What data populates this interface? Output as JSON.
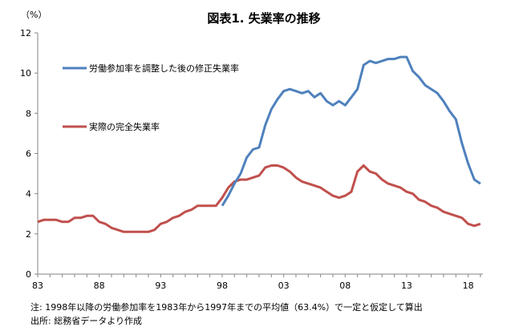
{
  "chart_data": {
    "type": "line",
    "title": "図表1. 失業率の推移",
    "unit_label": "（%）",
    "ylim": [
      0,
      12
    ],
    "y_ticks": [
      0,
      2,
      4,
      6,
      8,
      10,
      12
    ],
    "x_tick_labels": [
      "83",
      "88",
      "93",
      "98",
      "03",
      "08",
      "13",
      "18"
    ],
    "x_tick_years": [
      1983,
      1988,
      1993,
      1998,
      2003,
      2008,
      2013,
      2018
    ],
    "xlim": [
      1983,
      2019.2
    ],
    "legend_placement": "top-left (inside plot)",
    "grid": false,
    "series": [
      {
        "name": "労働参加率を調整した後の修正失業率",
        "color": "#4F81BD",
        "x": [
          1998.0,
          1998.5,
          1999.0,
          1999.5,
          2000.0,
          2000.5,
          2001.0,
          2001.5,
          2002.0,
          2002.5,
          2003.0,
          2003.5,
          2004.0,
          2004.5,
          2005.0,
          2005.5,
          2006.0,
          2006.5,
          2007.0,
          2007.5,
          2008.0,
          2008.5,
          2009.0,
          2009.5,
          2010.0,
          2010.5,
          2011.0,
          2011.5,
          2012.0,
          2012.5,
          2013.0,
          2013.5,
          2014.0,
          2014.5,
          2015.0,
          2015.5,
          2016.0,
          2016.5,
          2017.0,
          2017.5,
          2018.0,
          2018.5,
          2019.0
        ],
        "values": [
          3.4,
          3.9,
          4.5,
          5.0,
          5.8,
          6.2,
          6.3,
          7.4,
          8.2,
          8.7,
          9.1,
          9.2,
          9.1,
          9.0,
          9.1,
          8.8,
          9.0,
          8.6,
          8.4,
          8.6,
          8.4,
          8.8,
          9.2,
          10.4,
          10.6,
          10.5,
          10.6,
          10.7,
          10.7,
          10.8,
          10.8,
          10.1,
          9.8,
          9.4,
          9.2,
          9.0,
          8.6,
          8.1,
          7.7,
          6.5,
          5.5,
          4.7,
          4.5
        ]
      },
      {
        "name": "実際の完全失業率",
        "color": "#C0504D",
        "x": [
          1983.0,
          1983.5,
          1984.0,
          1984.5,
          1985.0,
          1985.5,
          1986.0,
          1986.5,
          1987.0,
          1987.5,
          1988.0,
          1988.5,
          1989.0,
          1989.5,
          1990.0,
          1990.5,
          1991.0,
          1991.5,
          1992.0,
          1992.5,
          1993.0,
          1993.5,
          1994.0,
          1994.5,
          1995.0,
          1995.5,
          1996.0,
          1996.5,
          1997.0,
          1997.5,
          1998.0,
          1998.5,
          1999.0,
          1999.5,
          2000.0,
          2000.5,
          2001.0,
          2001.5,
          2002.0,
          2002.5,
          2003.0,
          2003.5,
          2004.0,
          2004.5,
          2005.0,
          2005.5,
          2006.0,
          2006.5,
          2007.0,
          2007.5,
          2008.0,
          2008.5,
          2009.0,
          2009.5,
          2010.0,
          2010.5,
          2011.0,
          2011.5,
          2012.0,
          2012.5,
          2013.0,
          2013.5,
          2014.0,
          2014.5,
          2015.0,
          2015.5,
          2016.0,
          2016.5,
          2017.0,
          2017.5,
          2018.0,
          2018.5,
          2019.0
        ],
        "values": [
          2.6,
          2.7,
          2.7,
          2.7,
          2.6,
          2.6,
          2.8,
          2.8,
          2.9,
          2.9,
          2.6,
          2.5,
          2.3,
          2.2,
          2.1,
          2.1,
          2.1,
          2.1,
          2.1,
          2.2,
          2.5,
          2.6,
          2.8,
          2.9,
          3.1,
          3.2,
          3.4,
          3.4,
          3.4,
          3.4,
          3.8,
          4.3,
          4.6,
          4.7,
          4.7,
          4.8,
          4.9,
          5.3,
          5.4,
          5.4,
          5.3,
          5.1,
          4.8,
          4.6,
          4.5,
          4.4,
          4.3,
          4.1,
          3.9,
          3.8,
          3.9,
          4.1,
          5.1,
          5.4,
          5.1,
          5.0,
          4.7,
          4.5,
          4.4,
          4.3,
          4.1,
          4.0,
          3.7,
          3.6,
          3.4,
          3.3,
          3.1,
          3.0,
          2.9,
          2.8,
          2.5,
          2.4,
          2.5
        ]
      }
    ]
  },
  "notes": {
    "note": "注: 1998年以降の労働参加率を1983年から1997年までの平均値（63.4%）で一定と仮定して算出",
    "source": "出所: 総務省データより作成"
  }
}
